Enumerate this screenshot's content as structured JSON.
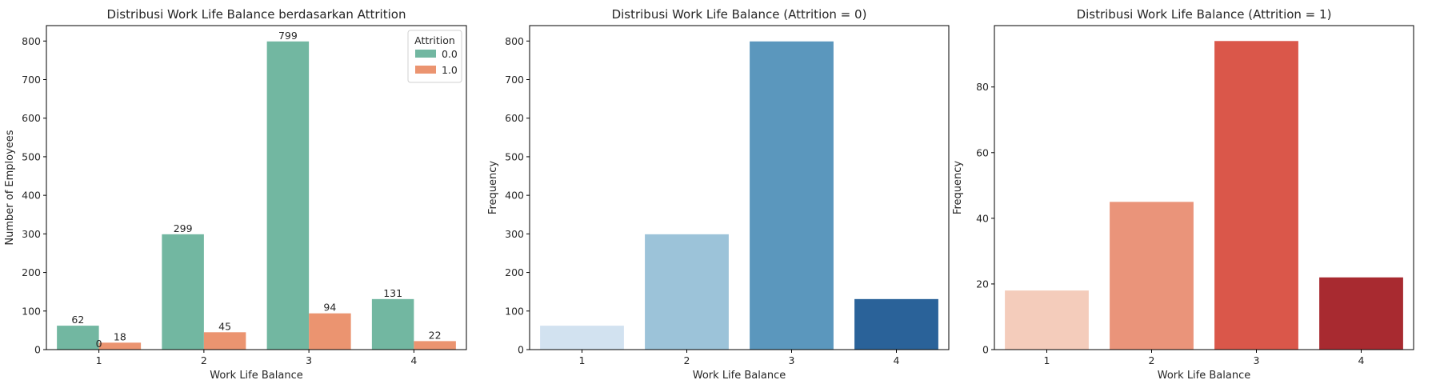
{
  "chart_data": [
    {
      "type": "bar",
      "title": "Distribusi Work Life Balance berdasarkan Attrition",
      "xlabel": "Work Life Balance",
      "ylabel": "Number of Employees",
      "categories": [
        "1",
        "2",
        "3",
        "4"
      ],
      "series": [
        {
          "name": "0.0",
          "color": "#72b7a1",
          "values": [
            62,
            299,
            799,
            131
          ]
        },
        {
          "name": "1.0",
          "color": "#eb9470",
          "values": [
            18,
            45,
            94,
            22
          ]
        }
      ],
      "bar_labels": [
        [
          "62",
          "299",
          "799",
          "131"
        ],
        [
          "18",
          "45",
          "94",
          "22"
        ]
      ],
      "extra_labels": [
        {
          "text": "0",
          "category_index": 0,
          "value": 0
        }
      ],
      "ylim": [
        0,
        840
      ],
      "yticks": [
        0,
        100,
        200,
        300,
        400,
        500,
        600,
        700,
        800
      ],
      "grid": false,
      "legend": {
        "title": "Attrition",
        "placement": "top-right"
      }
    },
    {
      "type": "bar",
      "title": "Distribusi Work Life Balance (Attrition = 0)",
      "xlabel": "Work Life Balance",
      "ylabel": "Frequency",
      "categories": [
        "1",
        "2",
        "3",
        "4"
      ],
      "values": [
        62,
        299,
        799,
        131
      ],
      "colors": [
        "#d2e2f0",
        "#9cc3d9",
        "#5b97bd",
        "#2a6299"
      ],
      "ylim": [
        0,
        840
      ],
      "yticks": [
        0,
        100,
        200,
        300,
        400,
        500,
        600,
        700,
        800
      ],
      "grid": false
    },
    {
      "type": "bar",
      "title": "Distribusi Work Life Balance (Attrition = 1)",
      "xlabel": "Work Life Balance",
      "ylabel": "Frequency",
      "categories": [
        "1",
        "2",
        "3",
        "4"
      ],
      "values": [
        18,
        45,
        94,
        22
      ],
      "colors": [
        "#f4ccbb",
        "#ea947a",
        "#da574a",
        "#a82a30"
      ],
      "ylim": [
        0,
        98.7
      ],
      "yticks": [
        0,
        20,
        40,
        60,
        80
      ],
      "grid": false
    }
  ]
}
